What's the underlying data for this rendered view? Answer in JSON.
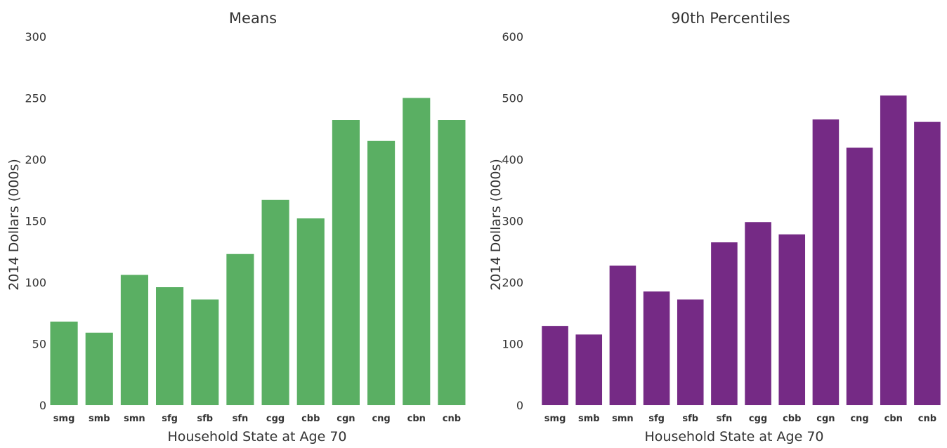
{
  "chart_data": [
    {
      "type": "bar",
      "title": "Means",
      "xlabel": "Household State at Age 70",
      "ylabel": "2014 Dollars (000s)",
      "ylim": [
        0,
        300
      ],
      "yticks": [
        "0",
        "50",
        "100",
        "150",
        "200",
        "250",
        "300"
      ],
      "grid": false,
      "color": "#5aaf63",
      "categories": [
        "smg",
        "smb",
        "smn",
        "sfg",
        "sfb",
        "sfn",
        "cgg",
        "cbb",
        "cgn",
        "cng",
        "cbn",
        "cnb"
      ],
      "values": [
        68,
        59,
        106,
        96,
        86,
        123,
        167,
        152,
        232,
        215,
        250,
        232
      ]
    },
    {
      "type": "bar",
      "title": "90th Percentiles",
      "xlabel": "Household State at Age 70",
      "ylabel": "2014 Dollars (000s)",
      "ylim": [
        0,
        600
      ],
      "yticks": [
        "0",
        "100",
        "200",
        "300",
        "400",
        "500",
        "600"
      ],
      "grid": false,
      "color": "#752a85",
      "categories": [
        "smg",
        "smb",
        "smn",
        "sfg",
        "sfb",
        "sfn",
        "cgg",
        "cbb",
        "cgn",
        "cng",
        "cbn",
        "cnb"
      ],
      "values": [
        129,
        115,
        227,
        185,
        172,
        265,
        298,
        278,
        465,
        419,
        504,
        461
      ]
    }
  ]
}
